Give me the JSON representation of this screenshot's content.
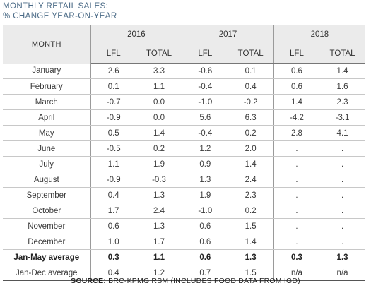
{
  "title": {
    "line1": "MONTHLY RETAIL SALES:",
    "line2": "% CHANGE YEAR-ON-YEAR"
  },
  "source": {
    "label": "SOURCE:",
    "text": "BRC-KPMG RSM (INCLUDES FOOD DATA FROM IGD)"
  },
  "chart_data": {
    "type": "table",
    "columns": {
      "month_header": "MONTH",
      "years": [
        "2016",
        "2017",
        "2018"
      ],
      "sub_headers": [
        "LFL",
        "TOTAL",
        "LFL",
        "TOTAL",
        "LFL",
        "TOTAL"
      ]
    },
    "rows": [
      {
        "label": "January",
        "values": [
          "2.6",
          "3.3",
          "-0.6",
          "0.1",
          "0.6",
          "1.4"
        ]
      },
      {
        "label": "February",
        "values": [
          "0.1",
          "1.1",
          "-0.4",
          "0.4",
          "0.6",
          "1.6"
        ]
      },
      {
        "label": "March",
        "values": [
          "-0.7",
          "0.0",
          "-1.0",
          "-0.2",
          "1.4",
          "2.3"
        ]
      },
      {
        "label": "April",
        "values": [
          "-0.9",
          "0.0",
          "5.6",
          "6.3",
          "-4.2",
          "-3.1"
        ]
      },
      {
        "label": "May",
        "values": [
          "0.5",
          "1.4",
          "-0.4",
          "0.2",
          "2.8",
          "4.1"
        ]
      },
      {
        "label": "June",
        "values": [
          "-0.5",
          "0.2",
          "1.2",
          "2.0",
          ".",
          "."
        ]
      },
      {
        "label": "July",
        "values": [
          "1.1",
          "1.9",
          "0.9",
          "1.4",
          ".",
          "."
        ]
      },
      {
        "label": "August",
        "values": [
          "-0.9",
          "-0.3",
          "1.3",
          "2.4",
          ".",
          "."
        ]
      },
      {
        "label": "September",
        "values": [
          "0.4",
          "1.3",
          "1.9",
          "2.3",
          ".",
          "."
        ]
      },
      {
        "label": "October",
        "values": [
          "1.7",
          "2.4",
          "-1.0",
          "0.2",
          ".",
          "."
        ]
      },
      {
        "label": "November",
        "values": [
          "0.6",
          "1.3",
          "0.6",
          "1.5",
          ".",
          "."
        ]
      },
      {
        "label": "December",
        "values": [
          "1.0",
          "1.7",
          "0.6",
          "1.4",
          ".",
          "."
        ]
      },
      {
        "label": "Jan-May average",
        "values": [
          "0.3",
          "1.1",
          "0.6",
          "1.3",
          "0.3",
          "1.3"
        ]
      },
      {
        "label": "Jan-Dec average",
        "values": [
          "0.4",
          "1.2",
          "0.7",
          "1.5",
          "n/a",
          "n/a"
        ]
      }
    ]
  }
}
